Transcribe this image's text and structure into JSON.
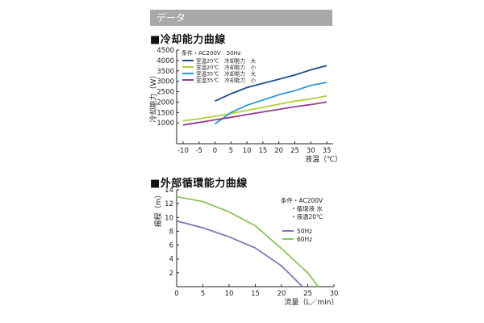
{
  "section_title": "データ",
  "chart_data": [
    {
      "type": "line",
      "title": "■冷却能力曲線",
      "xlabel": "液温（℃）",
      "ylabel": "冷却能力（W）",
      "xlim": [
        -12,
        37
      ],
      "ylim": [
        0,
        4500
      ],
      "xticks": [
        -10,
        -5,
        0,
        5,
        10,
        15,
        20,
        25,
        30,
        35
      ],
      "yticks": [
        1000,
        1500,
        2000,
        2500,
        3000,
        3500,
        4000,
        4500
      ],
      "legend_title": "条件・AC200V　50Hz",
      "legend_position": "top-left",
      "grid": false,
      "series": [
        {
          "name": "室温20℃　冷却能力　大",
          "color": "#1f4e8c",
          "x": [
            0,
            5,
            10,
            15,
            20,
            25,
            30,
            35
          ],
          "y": [
            2050,
            2400,
            2700,
            2900,
            3100,
            3300,
            3550,
            3750
          ]
        },
        {
          "name": "室温20℃　冷却能力　小",
          "color": "#b2cf3a",
          "x": [
            -10,
            -5,
            0,
            5,
            10,
            15,
            20,
            25,
            30,
            35
          ],
          "y": [
            1100,
            1200,
            1320,
            1450,
            1600,
            1750,
            1900,
            2050,
            2150,
            2300
          ]
        },
        {
          "name": "室温35℃　冷却能力　大",
          "color": "#2d9ad6",
          "x": [
            0,
            5,
            10,
            15,
            20,
            25,
            30,
            35
          ],
          "y": [
            950,
            1500,
            1850,
            2100,
            2350,
            2550,
            2800,
            2950
          ]
        },
        {
          "name": "室温35℃　冷却能力　小",
          "color": "#8e3f8f",
          "x": [
            -10,
            -5,
            0,
            5,
            10,
            15,
            20,
            25,
            30,
            35
          ],
          "y": [
            900,
            1020,
            1150,
            1270,
            1400,
            1530,
            1650,
            1780,
            1880,
            2000
          ]
        }
      ]
    },
    {
      "type": "line",
      "title": "■外部循環能力曲線",
      "xlabel": "流量（L／min）",
      "ylabel": "揚程（m）",
      "xlim": [
        0,
        30
      ],
      "ylim": [
        0,
        14
      ],
      "xticks": [
        0,
        5,
        10,
        15,
        20,
        25,
        30
      ],
      "yticks": [
        2,
        4,
        6,
        8,
        10,
        12,
        14
      ],
      "conditions": [
        "条件・AC200V",
        "・循環液 水",
        "・液温20℃"
      ],
      "legend_position": "right",
      "grid": false,
      "series": [
        {
          "name": "50Hz",
          "color": "#8474b6",
          "x": [
            0,
            5,
            10,
            15,
            20,
            22,
            24
          ],
          "y": [
            9.5,
            8.5,
            7.2,
            5.6,
            3.0,
            1.5,
            0
          ]
        },
        {
          "name": "60Hz",
          "color": "#8cc35a",
          "x": [
            0,
            5,
            10,
            15,
            20,
            25,
            27
          ],
          "y": [
            13,
            12.3,
            10.8,
            8.8,
            5.5,
            2.0,
            0
          ]
        }
      ]
    }
  ]
}
